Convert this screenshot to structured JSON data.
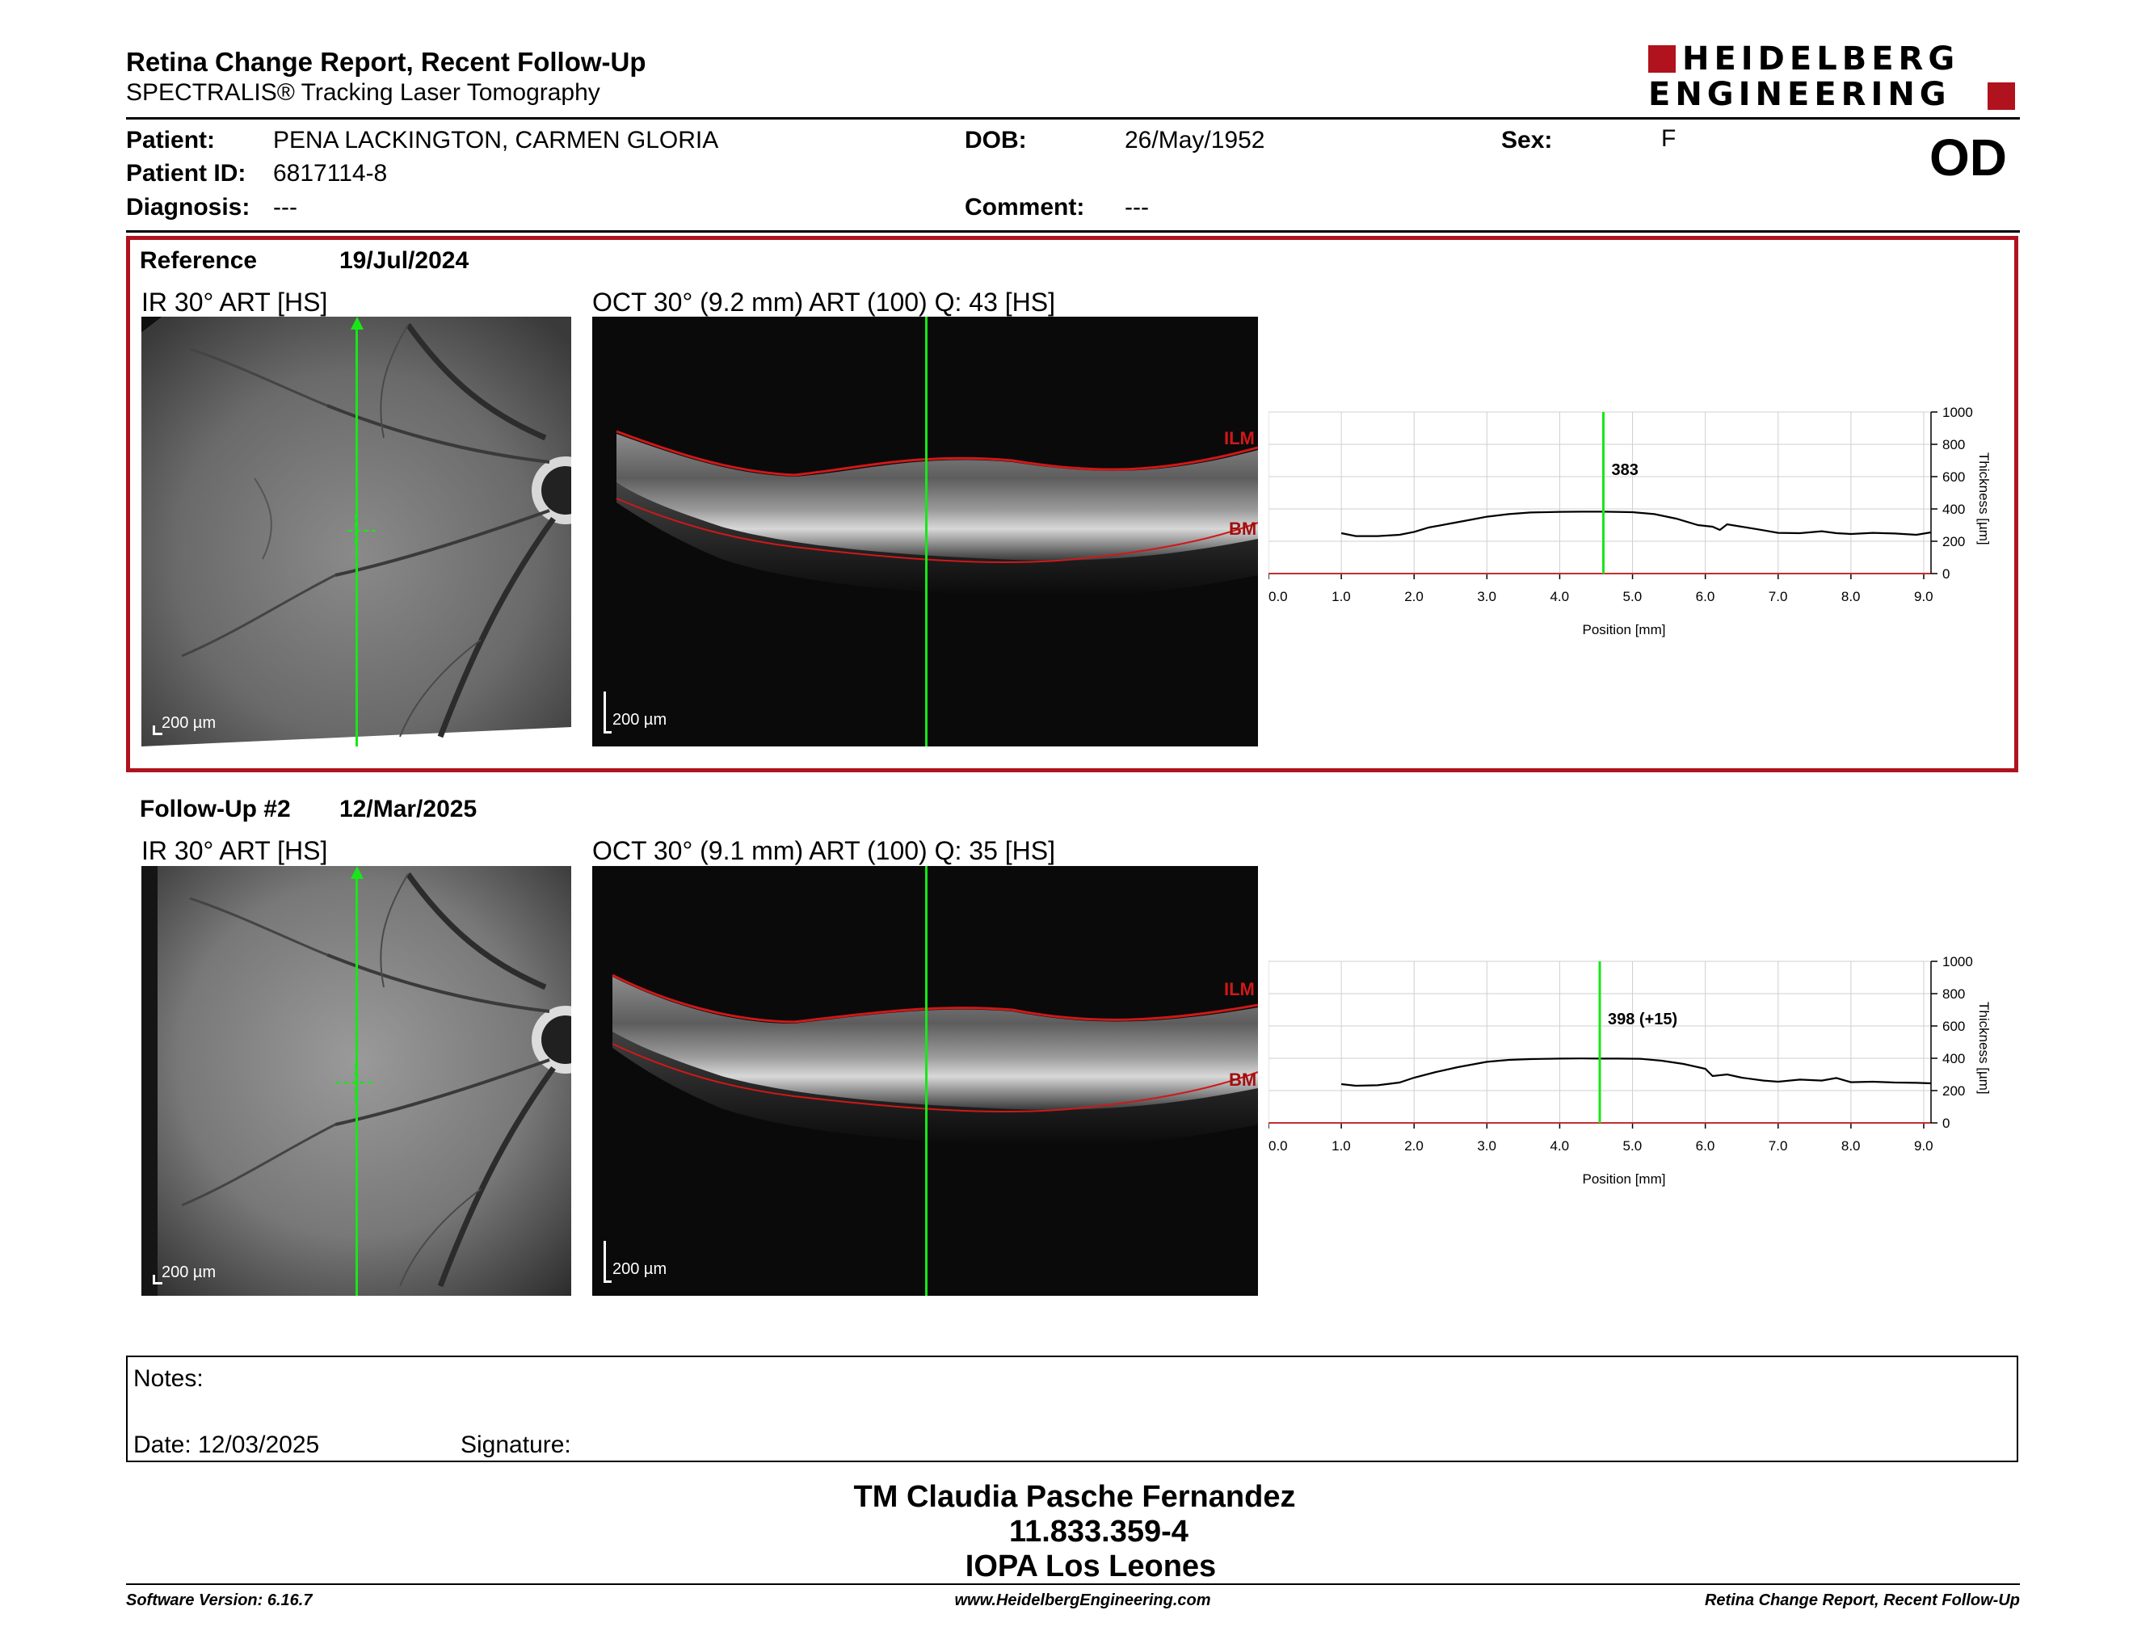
{
  "header": {
    "title": "Retina Change Report, Recent Follow-Up",
    "subtitle": "SPECTRALIS® Tracking Laser Tomography",
    "logo_line1": "HEIDELBERG",
    "logo_line2": "ENGINEERING",
    "eye": "OD"
  },
  "patient": {
    "patient_label": "Patient:",
    "patient_value": "PENA LACKINGTON, CARMEN GLORIA",
    "id_label": "Patient ID:",
    "id_value": "6817114-8",
    "diagnosis_label": "Diagnosis:",
    "diagnosis_value": "---",
    "dob_label": "DOB:",
    "dob_value": "26/May/1952",
    "comment_label": "Comment:",
    "comment_value": "---",
    "sex_label": "Sex:",
    "sex_value": "F"
  },
  "reference": {
    "label": "Reference",
    "date": "19/Jul/2024",
    "ir_caption": "IR 30° ART [HS]",
    "oct_caption": "OCT 30° (9.2 mm) ART (100) Q: 43 [HS]",
    "scale_ir": "200 µm",
    "scale_oct": "200 µm",
    "ilm": "ILM",
    "bm": "BM"
  },
  "followup": {
    "label": "Follow-Up #2",
    "date": "12/Mar/2025",
    "ir_caption": "IR 30° ART [HS]",
    "oct_caption": "OCT 30° (9.1 mm) ART (100) Q: 35 [HS]",
    "scale_ir": "200 µm",
    "scale_oct": "200 µm",
    "ilm": "ILM",
    "bm": "BM"
  },
  "colors": {
    "frame_red": "#b0121e",
    "green_marker": "#19e619",
    "ilm_red": "#d01818",
    "logo_red": "#b0121e"
  },
  "chart_data": [
    {
      "type": "line",
      "xlabel": "Position [mm]",
      "ylabel": "Thickness [µm]",
      "xlim": [
        0.0,
        9.1
      ],
      "ylim": [
        0,
        1000
      ],
      "xticks": [
        "0.0",
        "1.0",
        "2.0",
        "3.0",
        "4.0",
        "5.0",
        "6.0",
        "7.0",
        "8.0",
        "9.0"
      ],
      "yticks": [
        "0",
        "200",
        "400",
        "600",
        "800",
        "1000"
      ],
      "grid": true,
      "marker_x": 4.6,
      "marker_label": "383",
      "series": [
        {
          "x": [
            1.0,
            1.2,
            1.5,
            1.8,
            2.0,
            2.2,
            2.5,
            2.8,
            3.0,
            3.3,
            3.6,
            4.0,
            4.3,
            4.6,
            5.0,
            5.3,
            5.6,
            5.9,
            6.1,
            6.2,
            6.3,
            6.5,
            6.8,
            7.0,
            7.3,
            7.6,
            7.8,
            8.0,
            8.3,
            8.6,
            8.9,
            9.1
          ],
          "y": [
            250,
            232,
            232,
            240,
            258,
            285,
            310,
            335,
            352,
            368,
            378,
            382,
            383,
            383,
            380,
            368,
            340,
            300,
            290,
            270,
            305,
            290,
            268,
            252,
            250,
            262,
            250,
            245,
            252,
            248,
            240,
            255
          ]
        }
      ]
    },
    {
      "type": "line",
      "xlabel": "Position [mm]",
      "ylabel": "Thickness [µm]",
      "xlim": [
        0.0,
        9.1
      ],
      "ylim": [
        0,
        1000
      ],
      "xticks": [
        "0.0",
        "1.0",
        "2.0",
        "3.0",
        "4.0",
        "5.0",
        "6.0",
        "7.0",
        "8.0",
        "9.0"
      ],
      "yticks": [
        "0",
        "200",
        "400",
        "600",
        "800",
        "1000"
      ],
      "grid": true,
      "marker_x": 4.55,
      "marker_label": "398 (+15)",
      "series": [
        {
          "x": [
            1.0,
            1.2,
            1.5,
            1.8,
            2.0,
            2.3,
            2.6,
            3.0,
            3.3,
            3.6,
            4.0,
            4.3,
            4.55,
            4.8,
            5.1,
            5.4,
            5.7,
            6.0,
            6.1,
            6.3,
            6.5,
            6.8,
            7.0,
            7.3,
            7.6,
            7.8,
            8.0,
            8.3,
            8.6,
            8.9,
            9.1
          ],
          "y": [
            240,
            230,
            233,
            250,
            280,
            315,
            345,
            378,
            390,
            395,
            398,
            399,
            398,
            398,
            397,
            385,
            365,
            335,
            290,
            300,
            280,
            262,
            255,
            268,
            262,
            278,
            252,
            255,
            250,
            248,
            245
          ]
        }
      ]
    }
  ],
  "notes": {
    "notes_label": "Notes:",
    "date_label": "Date: 12/03/2025",
    "signature_label": "Signature:"
  },
  "stamp": {
    "line1": "TM Claudia Pasche Fernandez",
    "line2": "11.833.359-4",
    "line3": "IOPA Los Leones"
  },
  "footer": {
    "left": "Software Version: 6.16.7",
    "center": "www.HeidelbergEngineering.com",
    "right": "Retina Change Report, Recent Follow-Up"
  }
}
